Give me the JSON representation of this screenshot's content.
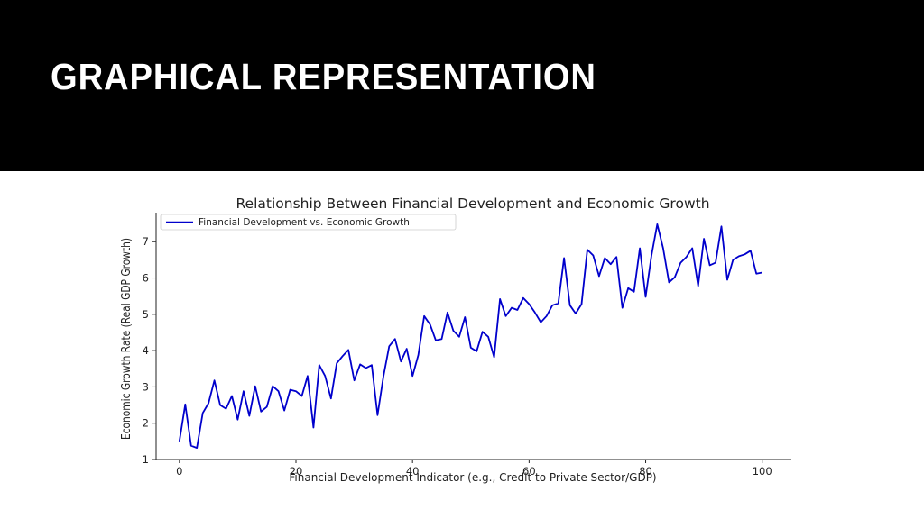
{
  "slide": {
    "title": "GRAPHICAL REPRESENTATION"
  },
  "colors": {
    "header_bg": "#000000",
    "title_text": "#ffffff",
    "line": "#0000cc",
    "background": "#ffffff"
  },
  "chart_data": {
    "type": "line",
    "title": "Relationship Between Financial Development and Economic Growth",
    "xlabel": "Financial Development Indicator (e.g., Credit to Private Sector/GDP)",
    "ylabel": "Economic Growth Rate (Real GDP Growth)",
    "xlim": [
      -4,
      105
    ],
    "ylim": [
      1,
      7.8
    ],
    "xticks": [
      0,
      20,
      40,
      60,
      80,
      100
    ],
    "yticks": [
      1,
      2,
      3,
      4,
      5,
      6,
      7
    ],
    "grid": false,
    "legend": {
      "position": "top-left"
    },
    "series": [
      {
        "name": "Financial Development vs. Economic Growth",
        "color": "#0000cc",
        "x": [
          0,
          1,
          2,
          3,
          4,
          5,
          6,
          7,
          8,
          9,
          10,
          11,
          12,
          13,
          14,
          15,
          16,
          17,
          18,
          19,
          20,
          21,
          22,
          23,
          24,
          25,
          26,
          27,
          28,
          29,
          30,
          31,
          32,
          33,
          34,
          35,
          36,
          37,
          38,
          39,
          40,
          41,
          42,
          43,
          44,
          45,
          46,
          47,
          48,
          49,
          50,
          51,
          52,
          53,
          54,
          55,
          56,
          57,
          58,
          59,
          60,
          61,
          62,
          63,
          64,
          65,
          66,
          67,
          68,
          69,
          70,
          71,
          72,
          73,
          74,
          75,
          76,
          77,
          78,
          79,
          80,
          81,
          82,
          83,
          84,
          85,
          86,
          87,
          88,
          89,
          90,
          91,
          92,
          93,
          94,
          95,
          96,
          97,
          98,
          99,
          100
        ],
        "y": [
          1.5,
          2.52,
          1.38,
          1.32,
          2.28,
          2.55,
          3.18,
          2.5,
          2.4,
          2.75,
          2.1,
          2.88,
          2.2,
          3.02,
          2.32,
          2.45,
          3.02,
          2.88,
          2.35,
          2.92,
          2.88,
          2.75,
          3.3,
          1.88,
          3.6,
          3.3,
          2.68,
          3.65,
          3.85,
          4.02,
          3.18,
          3.62,
          3.52,
          3.6,
          2.22,
          3.28,
          4.12,
          4.32,
          3.7,
          4.05,
          3.3,
          3.88,
          4.95,
          4.72,
          4.28,
          4.32,
          5.05,
          4.55,
          4.38,
          4.92,
          4.08,
          3.98,
          4.52,
          4.38,
          3.82,
          5.42,
          4.95,
          5.18,
          5.12,
          5.45,
          5.28,
          5.05,
          4.78,
          4.95,
          5.25,
          5.3,
          6.55,
          5.25,
          5.02,
          5.28,
          6.78,
          6.62,
          6.05,
          6.55,
          6.38,
          6.58,
          5.18,
          5.72,
          5.62,
          6.82,
          5.48,
          6.62,
          7.48,
          6.82,
          5.88,
          6.02,
          6.42,
          6.58,
          6.82,
          5.78,
          7.08,
          6.35,
          6.42,
          7.42,
          5.95,
          6.5,
          6.6,
          6.65,
          6.75,
          6.12,
          6.15
        ]
      }
    ]
  }
}
